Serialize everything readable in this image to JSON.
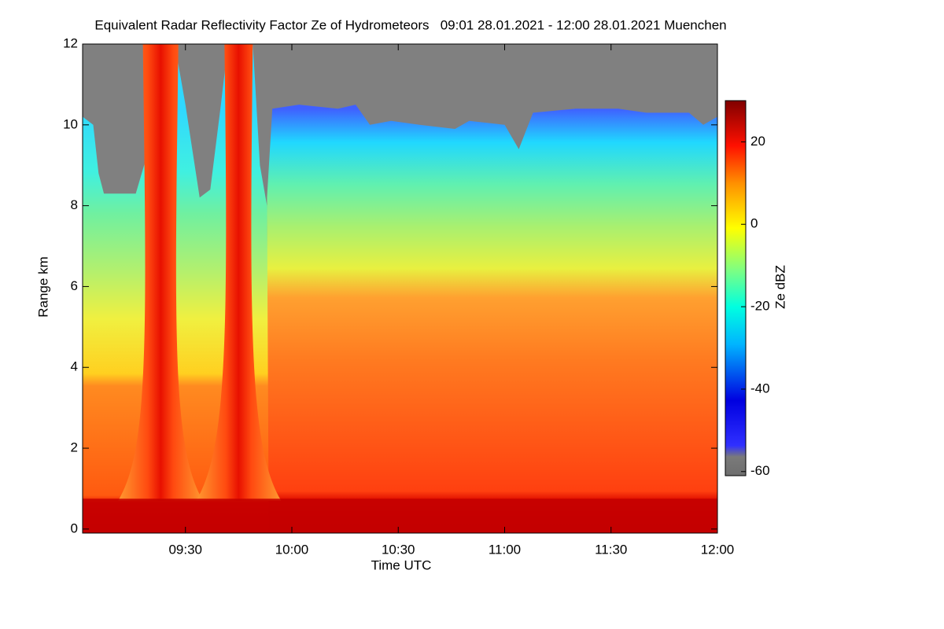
{
  "chart_data": {
    "type": "heatmap",
    "title": "Equivalent Radar Reflectivity Factor Ze of Hydrometeors   09:01 28.01.2021 - 12:00 28.01.2021 Muenchen",
    "x_label": "Time UTC",
    "y_label": "Range km",
    "xlim": [
      541,
      720
    ],
    "xticks": [
      {
        "value": 570,
        "label": "09:30"
      },
      {
        "value": 600,
        "label": "10:00"
      },
      {
        "value": 630,
        "label": "10:30"
      },
      {
        "value": 660,
        "label": "11:00"
      },
      {
        "value": 690,
        "label": "11:30"
      },
      {
        "value": 720,
        "label": "12:00"
      }
    ],
    "ylim": [
      -0.1,
      12
    ],
    "yticks": [
      0,
      2,
      4,
      6,
      8,
      10,
      12
    ],
    "colorbar": {
      "label": "Ze dBZ",
      "lim": [
        -61,
        30
      ],
      "ticks": [
        20,
        0,
        -20,
        -40,
        -60
      ]
    }
  }
}
